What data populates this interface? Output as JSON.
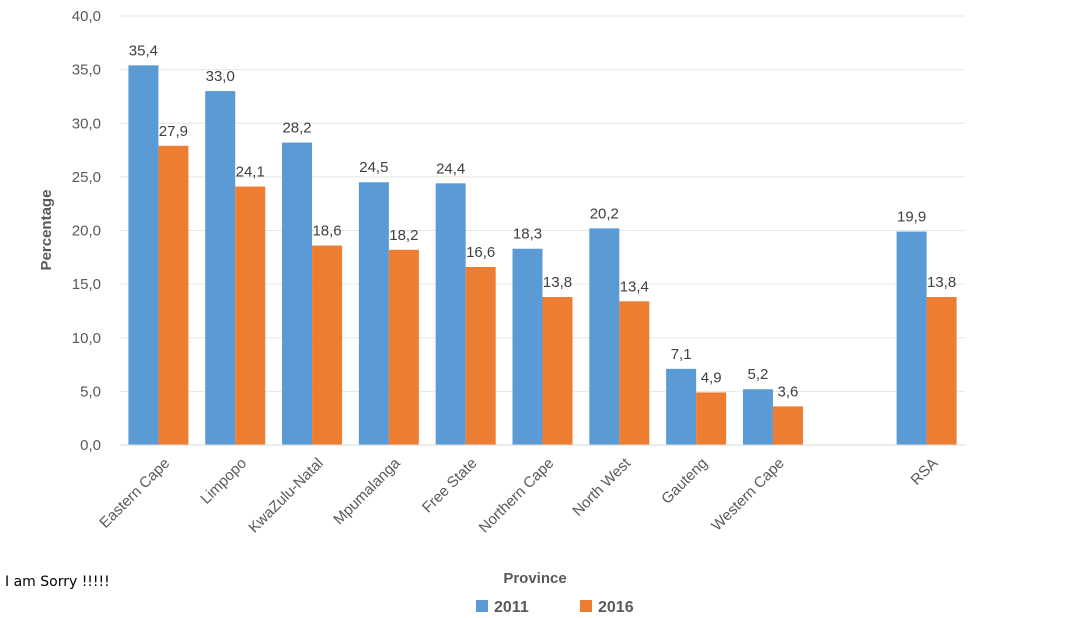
{
  "caption": "I am Sorry !!!!!",
  "chart_data": {
    "type": "bar",
    "title": "",
    "xlabel": "Province",
    "ylabel": "Percentage",
    "ylim": [
      0,
      40
    ],
    "yticks": [
      "0,0",
      "5,0",
      "10,0",
      "15,0",
      "20,0",
      "25,0",
      "30,0",
      "35,0",
      "40,0"
    ],
    "grid": true,
    "legend_position": "bottom",
    "categories": [
      "Eastern Cape",
      "Limpopo",
      "KwaZulu-Natal",
      "Mpumalanga",
      "Free State",
      "Northern Cape",
      "North West",
      "Gauteng",
      "Western Cape",
      "",
      "RSA"
    ],
    "series": [
      {
        "name": "2011",
        "color": "#5b9bd5",
        "values": [
          35.4,
          33.0,
          28.2,
          24.5,
          24.4,
          18.3,
          20.2,
          7.1,
          5.2,
          null,
          19.9
        ],
        "labels": [
          "35,4",
          "33,0",
          "28,2",
          "24,5",
          "24,4",
          "18,3",
          "20,2",
          "7,1",
          "5,2",
          "",
          "19,9"
        ]
      },
      {
        "name": "2016",
        "color": "#ed7d31",
        "values": [
          27.9,
          24.1,
          18.6,
          18.2,
          16.6,
          13.8,
          13.4,
          4.9,
          3.6,
          null,
          13.8
        ],
        "labels": [
          "27,9",
          "24,1",
          "18,6",
          "18,2",
          "16,6",
          "13,8",
          "13,4",
          "4,9",
          "3,6",
          "",
          "13,8"
        ]
      }
    ]
  }
}
